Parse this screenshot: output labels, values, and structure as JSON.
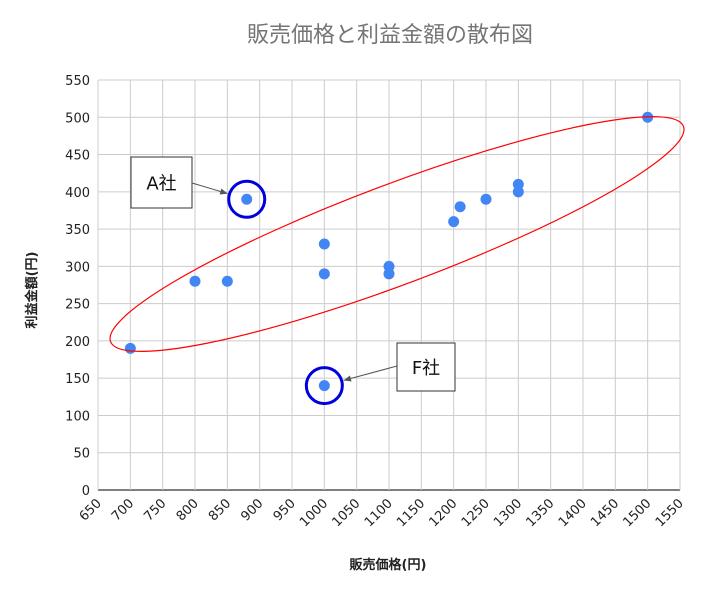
{
  "chart_data": {
    "type": "scatter",
    "title": "販売価格と利益金額の散布図",
    "xlabel": "販売価格(円)",
    "ylabel": "利益金額(円)",
    "xlim": [
      650,
      1550
    ],
    "ylim": [
      0,
      550
    ],
    "xticks": [
      650,
      700,
      750,
      800,
      850,
      900,
      950,
      1000,
      1050,
      1100,
      1150,
      1200,
      1250,
      1300,
      1350,
      1400,
      1450,
      1500,
      1550
    ],
    "yticks": [
      0,
      50,
      100,
      150,
      200,
      250,
      300,
      350,
      400,
      450,
      500,
      550
    ],
    "grid": true,
    "legend": "none",
    "series": [
      {
        "name": "利益金額",
        "color": "#4285f4",
        "points": [
          {
            "x": 700,
            "y": 190
          },
          {
            "x": 800,
            "y": 280
          },
          {
            "x": 850,
            "y": 280
          },
          {
            "x": 880,
            "y": 390
          },
          {
            "x": 1000,
            "y": 330
          },
          {
            "x": 1000,
            "y": 290
          },
          {
            "x": 1000,
            "y": 140
          },
          {
            "x": 1100,
            "y": 300
          },
          {
            "x": 1100,
            "y": 290
          },
          {
            "x": 1200,
            "y": 360
          },
          {
            "x": 1210,
            "y": 380
          },
          {
            "x": 1250,
            "y": 390
          },
          {
            "x": 1300,
            "y": 410
          },
          {
            "x": 1300,
            "y": 400
          },
          {
            "x": 1500,
            "y": 500
          }
        ]
      }
    ],
    "annotations": [
      {
        "label": "A社",
        "x": 880,
        "y": 390
      },
      {
        "label": "F社",
        "x": 1000,
        "y": 140
      }
    ],
    "highlight_color": "#0000dd",
    "ellipse_color": "#ff0000"
  }
}
